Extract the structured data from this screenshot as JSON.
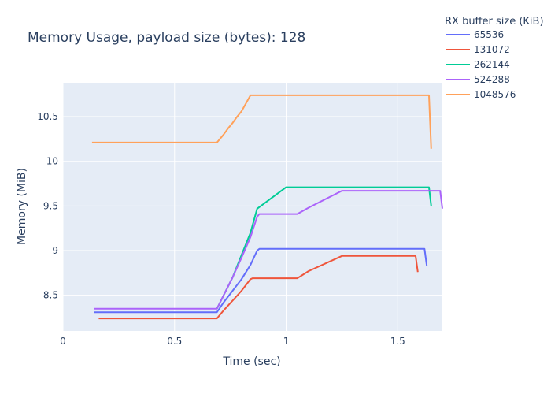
{
  "chart_data": {
    "type": "line",
    "title": "Memory Usage, payload size (bytes): 128",
    "xlabel": "Time (sec)",
    "ylabel": "Memory (MiB)",
    "xlim": [
      0,
      1.7
    ],
    "ylim": [
      8.1,
      10.88
    ],
    "x_ticks": [
      0,
      0.5,
      1,
      1.5
    ],
    "x_tick_labels": [
      "0",
      "0.5",
      "1",
      "1.5"
    ],
    "y_ticks": [
      8.5,
      9,
      9.5,
      10,
      10.5
    ],
    "y_tick_labels": [
      "8.5",
      "9",
      "9.5",
      "10",
      "10.5"
    ],
    "grid": true,
    "plot_background": "#e5ecf6",
    "legend_title": "RX buffer size (KiB)",
    "legend_position": "top-right",
    "series": [
      {
        "name": "65536",
        "color": "#636efa",
        "x": [
          0.14,
          0.69,
          0.72,
          0.76,
          0.8,
          0.84,
          0.87,
          0.88,
          1.0,
          1.3,
          1.62,
          1.63
        ],
        "y": [
          8.31,
          8.31,
          8.42,
          8.55,
          8.68,
          8.84,
          9.0,
          9.02,
          9.02,
          9.02,
          9.02,
          8.83
        ]
      },
      {
        "name": "131072",
        "color": "#ef553b",
        "x": [
          0.16,
          0.69,
          0.72,
          0.76,
          0.8,
          0.84,
          0.85,
          1.05,
          1.1,
          1.25,
          1.45,
          1.58,
          1.59
        ],
        "y": [
          8.24,
          8.24,
          8.33,
          8.44,
          8.55,
          8.68,
          8.69,
          8.69,
          8.77,
          8.94,
          8.94,
          8.94,
          8.76
        ]
      },
      {
        "name": "262144",
        "color": "#00cc96",
        "x": [
          0.69,
          0.72,
          0.76,
          0.8,
          0.84,
          0.87,
          1.0,
          1.3,
          1.64,
          1.65
        ],
        "y": [
          8.35,
          8.5,
          8.7,
          8.95,
          9.2,
          9.47,
          9.71,
          9.71,
          9.71,
          9.5
        ]
      },
      {
        "name": "524288",
        "color": "#ab63fa",
        "x": [
          0.14,
          0.69,
          0.72,
          0.76,
          0.8,
          0.84,
          0.87,
          0.88,
          1.05,
          1.1,
          1.25,
          1.5,
          1.69,
          1.7
        ],
        "y": [
          8.35,
          8.35,
          8.5,
          8.7,
          8.92,
          9.15,
          9.38,
          9.41,
          9.41,
          9.48,
          9.67,
          9.67,
          9.67,
          9.47
        ]
      },
      {
        "name": "1048576",
        "color": "#ffa15a",
        "x": [
          0.13,
          0.69,
          0.72,
          0.74,
          0.76,
          0.78,
          0.8,
          0.82,
          0.84,
          1.0,
          1.3,
          1.63,
          1.64,
          1.65
        ],
        "y": [
          10.21,
          10.21,
          10.3,
          10.37,
          10.43,
          10.5,
          10.56,
          10.65,
          10.74,
          10.74,
          10.74,
          10.74,
          10.74,
          10.14
        ]
      }
    ]
  }
}
